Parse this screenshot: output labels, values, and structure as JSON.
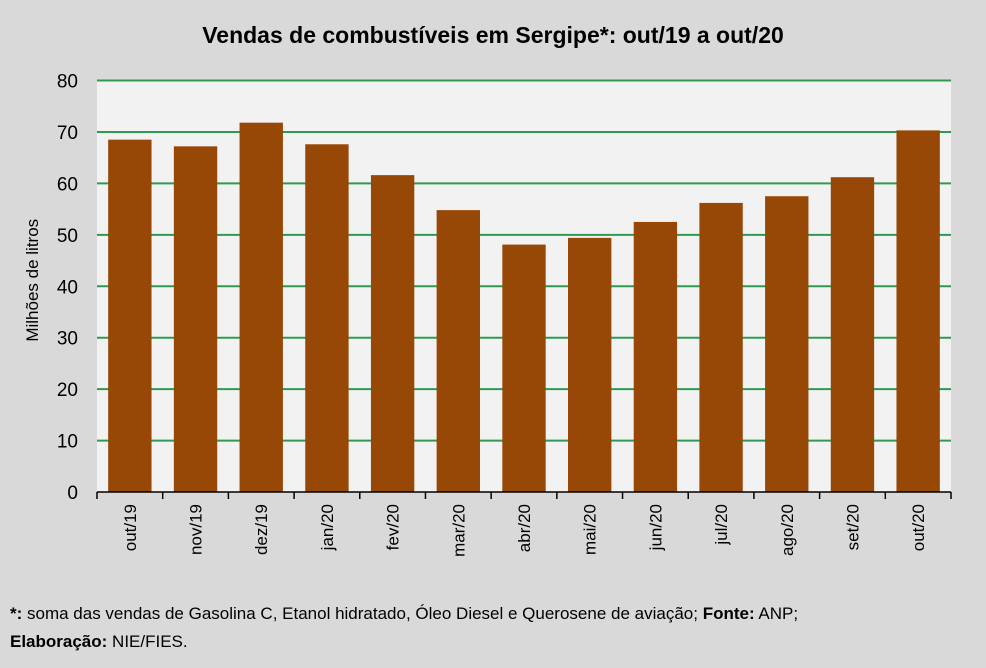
{
  "chart_data": {
    "type": "bar",
    "title": "Vendas de combustíveis em Sergipe*: out/19 a out/20",
    "xlabel": "",
    "ylabel": "Milhões de litros",
    "ylim": [
      0,
      80
    ],
    "yticks": [
      "0",
      "10",
      "20",
      "30",
      "40",
      "50",
      "60",
      "70",
      "80"
    ],
    "grid": true,
    "categories": [
      "out/19",
      "nov/19",
      "dez/19",
      "jan/20",
      "fev/20",
      "mar/20",
      "abr/20",
      "mai/20",
      "jun/20",
      "jul/20",
      "ago/20",
      "set/20",
      "out/20"
    ],
    "values": [
      68.5,
      67.2,
      71.8,
      67.6,
      61.6,
      54.8,
      48.1,
      49.4,
      52.5,
      56.2,
      57.5,
      61.2,
      70.3
    ],
    "colors": {
      "bar": "#974706",
      "grid": "#2e9a52",
      "plot_bg": "#f2f2f2",
      "page_bg": "#d9d9d9"
    }
  },
  "footnote": {
    "star_label": "*:",
    "star_text": " soma das vendas de Gasolina C, Etanol hidratado, Óleo Diesel e Querosene de aviação; ",
    "source_label": "Fonte:",
    "source_text": " ANP;",
    "elab_label": "Elaboração:",
    "elab_text": " NIE/FIES."
  }
}
